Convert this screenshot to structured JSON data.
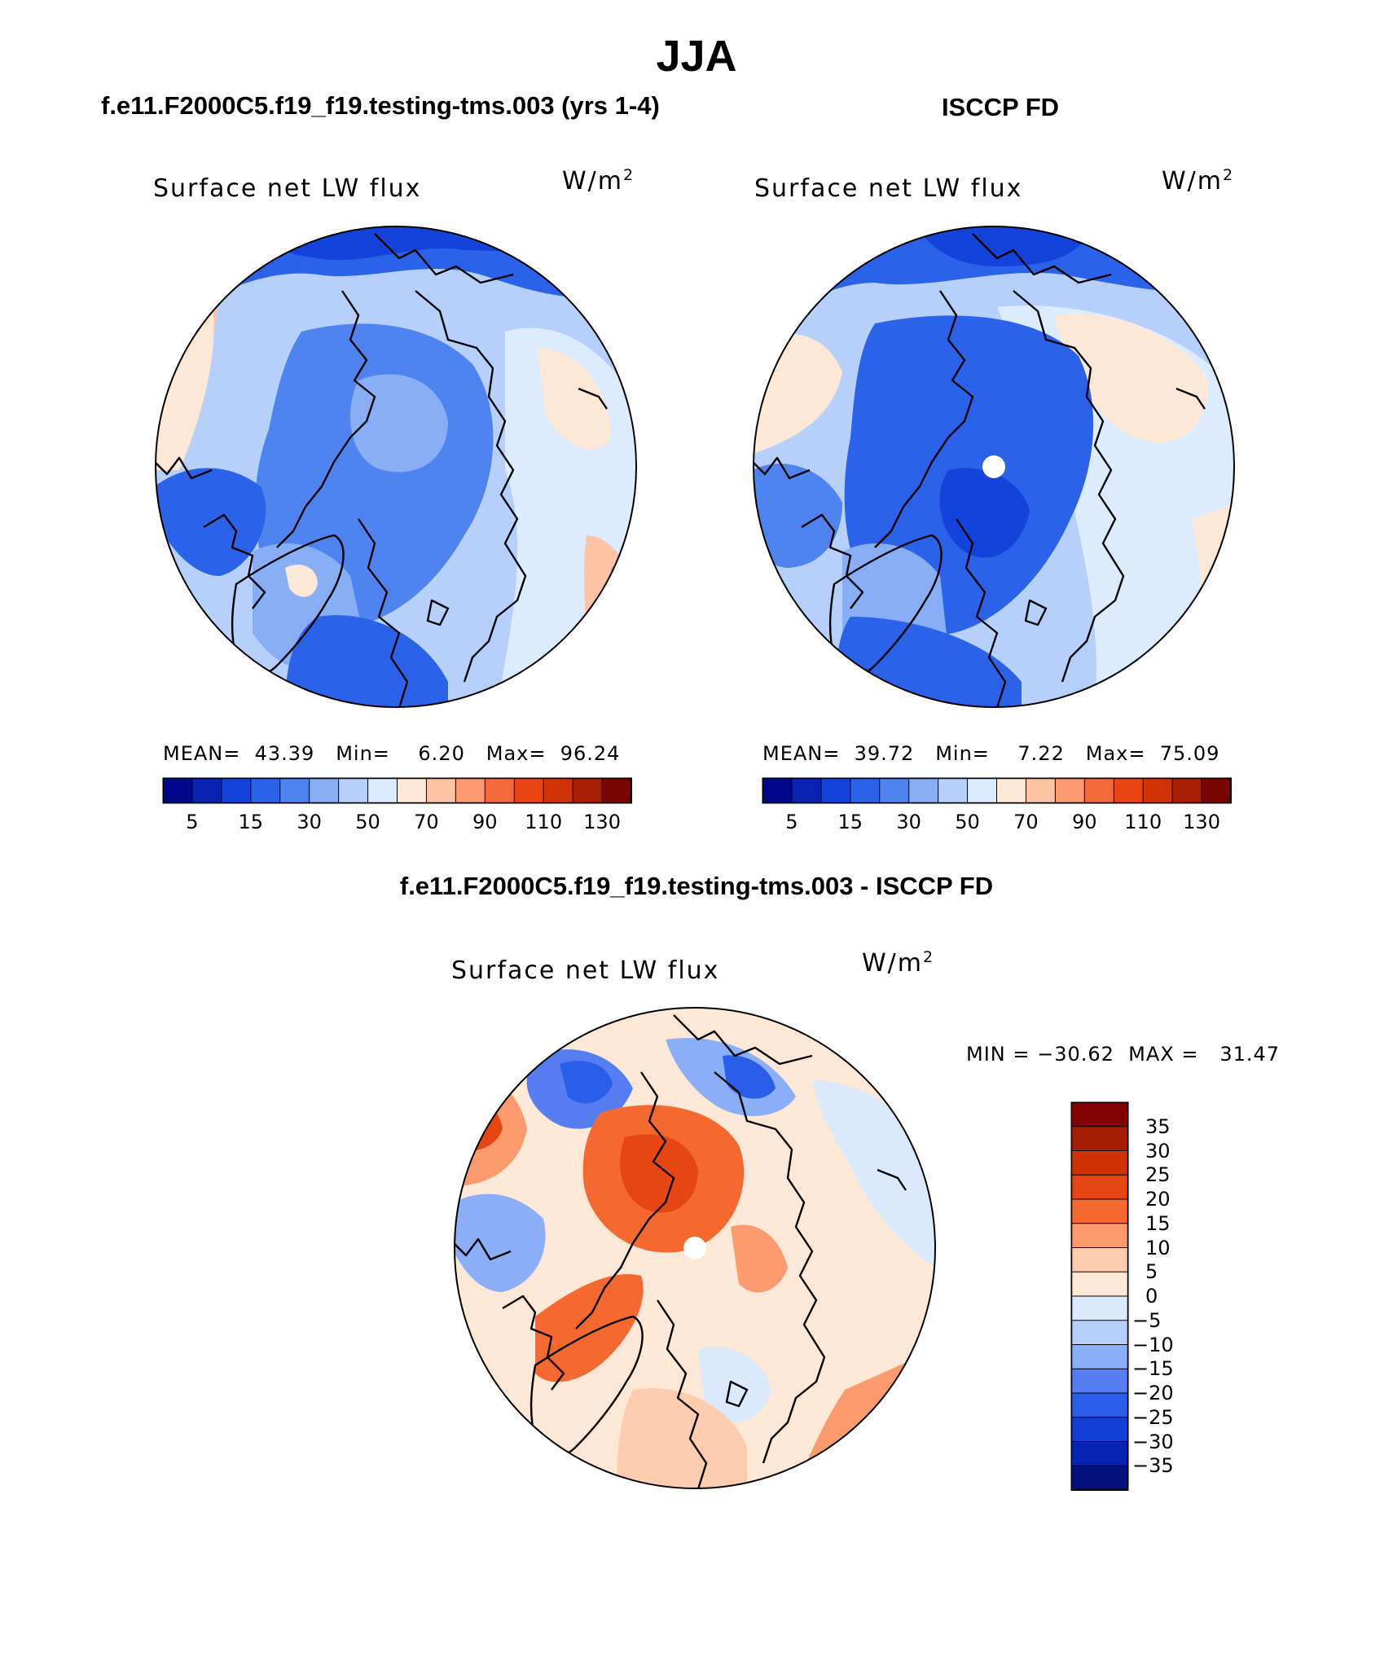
{
  "main_title": "JJA",
  "panels": {
    "model": {
      "title": "f.e11.F2000C5.f19_f19.testing-tms.003 (yrs 1-4)",
      "subtitle": "Surface net LW flux",
      "units_base": "W/m",
      "units_exp": "2",
      "stats": "MEAN=  43.39   Min=    6.20   Max=  96.24",
      "colorbar_labels": [
        "5",
        "15",
        "30",
        "50",
        "70",
        "90",
        "110",
        "130"
      ]
    },
    "obs": {
      "title": "ISCCP FD",
      "subtitle": "Surface net LW flux",
      "units_base": "W/m",
      "units_exp": "2",
      "stats": "MEAN=  39.72   Min=    7.22   Max=  75.09",
      "colorbar_labels": [
        "5",
        "15",
        "30",
        "50",
        "70",
        "90",
        "110",
        "130"
      ]
    },
    "diff": {
      "title": "f.e11.F2000C5.f19_f19.testing-tms.003 - ISCCP FD",
      "subtitle": "Surface net LW flux",
      "units_base": "W/m",
      "units_exp": "2",
      "stats": "MIN = −30.62  MAX =   31.47",
      "colorbar_labels": [
        "35",
        "30",
        "25",
        "20",
        "15",
        "10",
        "5",
        "0",
        "−5",
        "−10",
        "−15",
        "−20",
        "−25",
        "−30",
        "−35"
      ]
    }
  },
  "colors": {
    "abs_scale": [
      "#00078a",
      "#0a23b4",
      "#1443dc",
      "#2a62ea",
      "#4f83f0",
      "#88aef6",
      "#b7d0fb",
      "#dcebfd",
      "#fde8d8",
      "#fdc4a4",
      "#fb9a70",
      "#f56a3c",
      "#ea4512",
      "#d23306",
      "#a81e04",
      "#7a0402"
    ],
    "diff_scale": [
      "#830305",
      "#a51e03",
      "#cf3305",
      "#e64612",
      "#f5692f",
      "#fa9a6d",
      "#fdcbae",
      "#fde7d7",
      "#dbe9fd",
      "#b6cffb",
      "#8aaef7",
      "#567ef2",
      "#2b5ee8",
      "#143fd7",
      "#0724b3",
      "#03107e"
    ],
    "ocean_mid": "#4f83f0",
    "land_outline": "#000000"
  }
}
